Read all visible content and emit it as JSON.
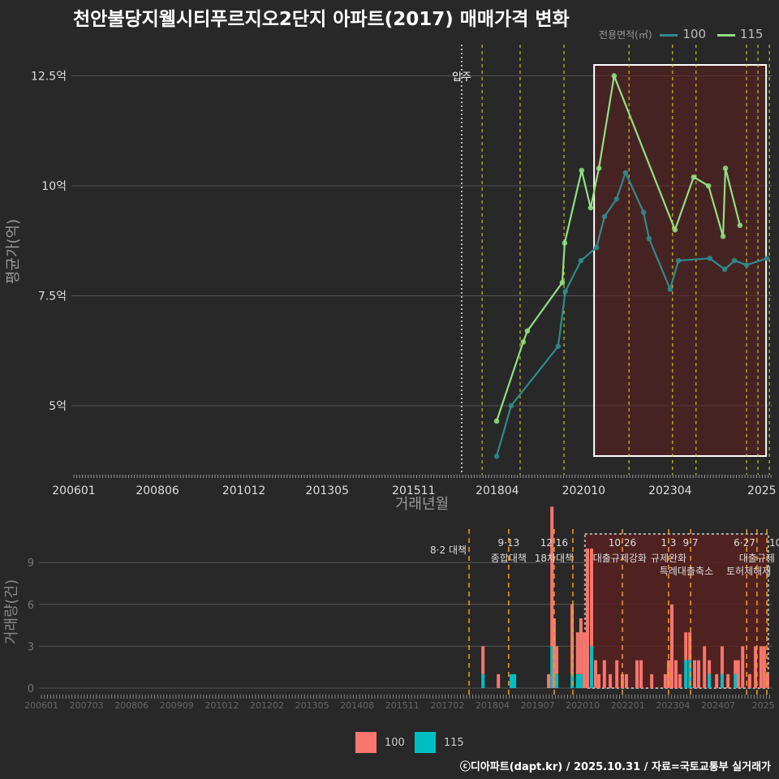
{
  "title": "천안불당지웰시티푸르지오2단지 아파트(2017) 매매가격 변화",
  "legend_top": {
    "title": "전용면적(㎡)",
    "items": [
      {
        "label": "100",
        "color": "#2f8a8a"
      },
      {
        "label": "115",
        "color": "#90e080"
      }
    ]
  },
  "legend_bottom": {
    "items": [
      {
        "label": "100",
        "color": "#f8766d"
      },
      {
        "label": "115",
        "color": "#00bfc4"
      }
    ]
  },
  "footer": "ⓒ디아파트(dapt.kr) / 2025.10.31 / 자료=국토교통부 실거래가",
  "chart_data": [
    {
      "type": "line",
      "title": "매매가격",
      "xlabel": "거래년월",
      "ylabel": "평균가(억)",
      "x_ticks": [
        {
          "v": 2006.0,
          "label": "200601"
        },
        {
          "v": 2008.42,
          "label": "200806"
        },
        {
          "v": 2010.92,
          "label": "201012"
        },
        {
          "v": 2013.33,
          "label": "201305"
        },
        {
          "v": 2015.83,
          "label": "201511"
        },
        {
          "v": 2018.25,
          "label": "201804"
        },
        {
          "v": 2020.75,
          "label": "202010"
        },
        {
          "v": 2023.25,
          "label": "202304"
        },
        {
          "v": 2025.9,
          "label": "2025"
        }
      ],
      "y_ticks": [
        {
          "v": 5,
          "label": "5억"
        },
        {
          "v": 7.5,
          "label": "7.5억"
        },
        {
          "v": 10,
          "label": "10억"
        },
        {
          "v": 12.5,
          "label": "12.5억"
        }
      ],
      "ylim": [
        3.4,
        13.5
      ],
      "series": [
        {
          "name": "100",
          "color": "#2f8a8a",
          "points": [
            [
              2018.23,
              3.85
            ],
            [
              2018.65,
              5.0
            ],
            [
              2020.01,
              6.35
            ],
            [
              2020.22,
              7.6
            ],
            [
              2020.67,
              8.3
            ],
            [
              2021.12,
              8.6
            ],
            [
              2021.35,
              9.3
            ],
            [
              2021.7,
              9.7
            ],
            [
              2021.96,
              10.3
            ],
            [
              2022.48,
              9.4
            ],
            [
              2022.64,
              8.8
            ],
            [
              2023.25,
              7.65
            ],
            [
              2023.49,
              8.3
            ],
            [
              2024.4,
              8.35
            ],
            [
              2024.83,
              8.1
            ],
            [
              2025.11,
              8.3
            ],
            [
              2025.46,
              8.2
            ],
            [
              2026.05,
              8.35
            ]
          ]
        },
        {
          "name": "115",
          "color": "#90e080",
          "points": [
            [
              2018.23,
              4.65
            ],
            [
              2019.0,
              6.45
            ],
            [
              2019.12,
              6.7
            ],
            [
              2020.13,
              7.8
            ],
            [
              2020.2,
              8.7
            ],
            [
              2020.69,
              10.35
            ],
            [
              2020.95,
              9.5
            ],
            [
              2021.19,
              10.4
            ],
            [
              2021.63,
              12.5
            ],
            [
              2023.39,
              9.0
            ],
            [
              2023.93,
              10.2
            ],
            [
              2024.36,
              10.0
            ],
            [
              2024.78,
              8.85
            ],
            [
              2024.85,
              10.4
            ],
            [
              2025.27,
              9.1
            ]
          ]
        }
      ],
      "annotations": [
        {
          "label": "입주",
          "x": 2017.22
        }
      ],
      "vlines": [
        2017.81,
        2018.91,
        2020.18,
        2022.06,
        2023.32,
        2024.0,
        2025.46,
        2025.79,
        2026.12
      ],
      "highlight": [
        2021.05,
        2026.12
      ]
    },
    {
      "type": "bar",
      "title": "거래량",
      "ylabel": "거래량(건)",
      "x_ticks": [
        "200601",
        "200703",
        "200806",
        "200909",
        "201012",
        "201202",
        "201305",
        "201408",
        "201511",
        "201702",
        "201804",
        "201907",
        "202010",
        "202201",
        "202304",
        "202407",
        "2025"
      ],
      "y_ticks": [
        0,
        3,
        6,
        9
      ],
      "ylim": [
        0,
        10.5
      ],
      "series_names": [
        "100",
        "115"
      ],
      "bars": [
        [
          2018.04,
          2,
          1
        ],
        [
          2018.46,
          1,
          0
        ],
        [
          2018.81,
          0,
          1
        ],
        [
          2018.9,
          0,
          1
        ],
        [
          2019.83,
          1,
          0
        ],
        [
          2019.92,
          10,
          3
        ],
        [
          2019.98,
          5,
          0
        ],
        [
          2020.05,
          2,
          1
        ],
        [
          2020.47,
          5,
          1
        ],
        [
          2020.62,
          3,
          1
        ],
        [
          2020.71,
          4,
          1
        ],
        [
          2020.8,
          4,
          0
        ],
        [
          2020.89,
          10,
          0
        ],
        [
          2021.0,
          7,
          3
        ],
        [
          2021.11,
          2,
          0
        ],
        [
          2021.2,
          1,
          0
        ],
        [
          2021.35,
          2,
          0
        ],
        [
          2021.51,
          1,
          0
        ],
        [
          2021.69,
          2,
          0
        ],
        [
          2021.84,
          1,
          0
        ],
        [
          2021.95,
          1,
          0
        ],
        [
          2022.24,
          2,
          0
        ],
        [
          2022.35,
          2,
          0
        ],
        [
          2022.64,
          1,
          0
        ],
        [
          2023.01,
          1,
          0
        ],
        [
          2023.1,
          2,
          0
        ],
        [
          2023.19,
          6,
          0
        ],
        [
          2023.3,
          2,
          0
        ],
        [
          2023.41,
          1,
          0
        ],
        [
          2023.57,
          2,
          2
        ],
        [
          2023.68,
          2,
          2
        ],
        [
          2023.81,
          2,
          0
        ],
        [
          2023.92,
          2,
          0
        ],
        [
          2024.08,
          3,
          0
        ],
        [
          2024.21,
          1,
          1
        ],
        [
          2024.41,
          1,
          0
        ],
        [
          2024.56,
          2,
          1
        ],
        [
          2024.72,
          1,
          0
        ],
        [
          2024.92,
          1,
          1
        ],
        [
          2025.0,
          2,
          0
        ],
        [
          2025.12,
          3,
          0
        ],
        [
          2025.31,
          1,
          0
        ],
        [
          2025.47,
          3,
          0
        ],
        [
          2025.62,
          3,
          0
        ],
        [
          2025.71,
          3,
          0
        ],
        [
          2025.8,
          1,
          0
        ]
      ],
      "policies": [
        {
          "x": 2017.66,
          "date": "",
          "label": "8·2 대책"
        },
        {
          "x": 2018.74,
          "date": "9·13",
          "label": "종합대책"
        },
        {
          "x": 2019.98,
          "date": "12·16",
          "label": "18차대책"
        },
        {
          "x": 2020.49,
          "date": "",
          "label": ""
        },
        {
          "x": 2021.84,
          "date": "10·26",
          "label": "대출규제강화"
        },
        {
          "x": 2023.1,
          "date": "1·3",
          "label": "규제완화"
        },
        {
          "x": 2023.7,
          "date": "9·7",
          "label": "특례대출축소"
        },
        {
          "x": 2025.23,
          "date": "",
          "label": "토허제해제"
        },
        {
          "x": 2025.51,
          "date": "6·27",
          "label": "대출규제"
        },
        {
          "x": 2025.78,
          "date": "10",
          "label": ""
        }
      ],
      "highlight": [
        2020.82,
        2025.82
      ]
    }
  ]
}
